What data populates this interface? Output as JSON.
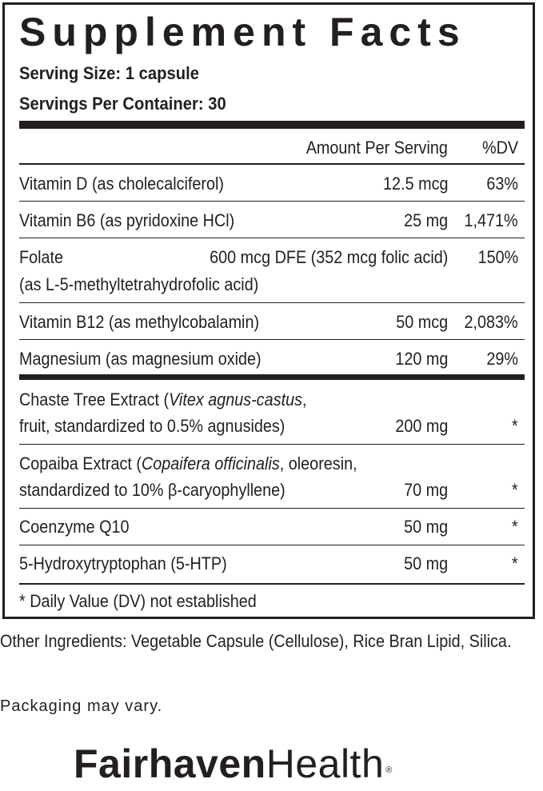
{
  "label": {
    "title": "Supplement Facts",
    "serving_size": "Serving Size: 1 capsule",
    "servings_per_container": "Servings Per Container: 30",
    "header": {
      "amount": "Amount Per Serving",
      "dv": "%DV"
    },
    "rows": [
      {
        "name": "Vitamin D (as cholecalciferol)",
        "amount": "12.5 mcg",
        "dv": "63%"
      },
      {
        "name": "Vitamin B6 (as pyridoxine HCl)",
        "amount": "25 mg",
        "dv": "1,471%"
      },
      {
        "name": "Folate",
        "name_line2": "(as L-5-methyltetrahydrofolic acid)",
        "amount": "600 mcg DFE (352 mcg folic acid)",
        "dv": "150%"
      },
      {
        "name": "Vitamin B12 (as methylcobalamin)",
        "amount": "50 mcg",
        "dv": "2,083%"
      },
      {
        "name": "Magnesium (as magnesium oxide)",
        "amount": "120 mg",
        "dv": "29%"
      },
      {
        "name_prefix": "Chaste Tree Extract (",
        "name_italic": "Vitex agnus-castus",
        "name_suffix": ",",
        "name_line2": "fruit, standardized to 0.5% agnusides)",
        "amount": "200 mg",
        "dv": "*"
      },
      {
        "name_prefix": "Copaiba Extract (",
        "name_italic": "Copaifera officinalis",
        "name_suffix": ", oleoresin,",
        "name_line2": "standardized to 10% β-caryophyllene)",
        "amount": "70 mg",
        "dv": "*"
      },
      {
        "name": "Coenzyme Q10",
        "amount": "50 mg",
        "dv": "*"
      },
      {
        "name": "5-Hydroxytryptophan (5-HTP)",
        "amount": "50 mg",
        "dv": "*"
      }
    ],
    "footnote": "* Daily Value (DV) not established"
  },
  "other_ingredients": "Other Ingredients:  Vegetable Capsule (Cellulose), Rice Bran Lipid, Silica.",
  "packaging_note": "Packaging may vary.",
  "brand": {
    "bold": "Fairhaven",
    "regular": "Health",
    "mark": "®"
  }
}
